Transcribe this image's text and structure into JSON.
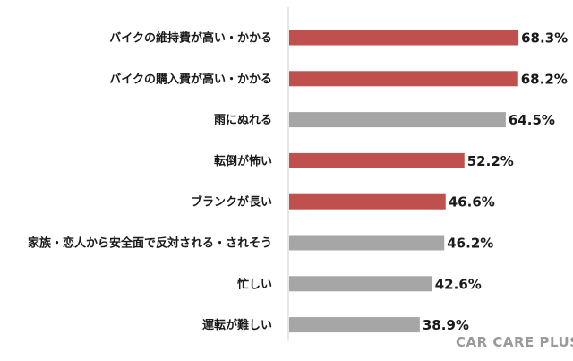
{
  "chart_data": {
    "type": "bar",
    "orientation": "horizontal",
    "categories": [
      "バイクの維持費が高い・かかる",
      "バイクの購入費が高い・かかる",
      "雨にぬれる",
      "転倒が怖い",
      "ブランクが長い",
      "家族・恋人から安全面で反対される・されそう",
      "忙しい",
      "運転が難しい"
    ],
    "values": [
      68.3,
      68.2,
      64.5,
      52.2,
      46.6,
      46.2,
      42.6,
      38.9
    ],
    "value_labels": [
      "68.3%",
      "68.2%",
      "64.5%",
      "52.2%",
      "46.6%",
      "46.2%",
      "42.6%",
      "38.9%"
    ],
    "highlighted": [
      true,
      true,
      false,
      true,
      true,
      false,
      false,
      false
    ],
    "xlim": [
      0,
      70
    ],
    "grid": false,
    "colors": {
      "highlight": "#c0504d",
      "neutral": "#a6a6a6",
      "text": "#1a1a1a",
      "axis": "#d0d0d0"
    }
  },
  "watermark": "CAR CARE PLUS"
}
